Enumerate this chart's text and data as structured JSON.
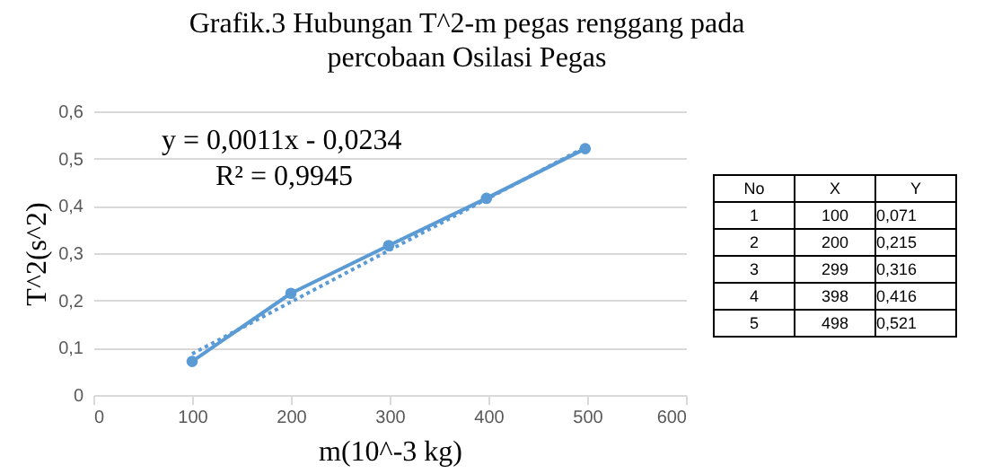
{
  "chart_data": {
    "type": "line",
    "title": "Grafik.3 Hubungan T^2-m pegas renggang pada percobaan Osilasi Pegas",
    "xlabel": "m(10^-3 kg)",
    "ylabel": "T^2(s^2)",
    "annotations": [
      "y = 0,0011x - 0,0234",
      "R² = 0,9945",
      "No",
      "X",
      "Y",
      "1",
      "100",
      "0,071",
      "2",
      "200",
      "0,215",
      "3",
      "299",
      "0,316",
      "4",
      "398",
      "0,416",
      "5",
      "498",
      "0,521"
    ],
    "series": [
      {
        "color": "#5b9bd5",
        "x": [
          100,
          200,
          299,
          398,
          498
        ],
        "values": [
          0.071,
          0.215,
          0.316,
          0.416,
          0.521
        ],
        "marker": "circle",
        "line_style": "solid"
      },
      {
        "color": "#5b9bd5",
        "x": [
          100,
          498
        ],
        "values": [
          0.087,
          0.524
        ],
        "line_style": "dotted"
      }
    ],
    "xlim": [
      0,
      600
    ],
    "xticks": [
      0,
      100,
      200,
      300,
      400,
      500,
      600
    ],
    "ylim": [
      0,
      0.6
    ],
    "yticks": [
      {
        "value": 0,
        "label": "0"
      },
      {
        "value": 0.1,
        "label": "0,1"
      },
      {
        "value": 0.2,
        "label": "0,2"
      },
      {
        "value": 0.3,
        "label": "0,3"
      },
      {
        "value": 0.4,
        "label": "0,4"
      },
      {
        "value": 0.5,
        "label": "0,5"
      },
      {
        "value": 0.6,
        "label": "0,6"
      }
    ],
    "grid": "y"
  }
}
